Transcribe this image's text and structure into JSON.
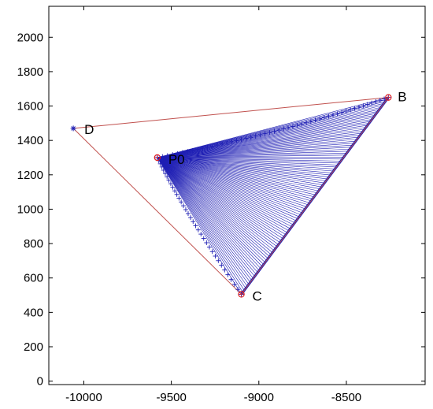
{
  "chart_data": {
    "type": "scatter",
    "title": "",
    "xlabel": "",
    "ylabel": "",
    "xlim": [
      -10200,
      -8050
    ],
    "ylim": [
      -20,
      2180
    ],
    "grid": false,
    "x_ticks": [
      -10000,
      -9500,
      -9000,
      -8500
    ],
    "x_tick_labels": [
      "-10000",
      "-9500",
      "-9000",
      "-8500"
    ],
    "y_ticks": [
      0,
      200,
      400,
      600,
      800,
      1000,
      1200,
      1400,
      1600,
      1800,
      2000
    ],
    "y_tick_labels": [
      "0",
      "200",
      "400",
      "600",
      "800",
      "1000",
      "1200",
      "1400",
      "1600",
      "1800",
      "2000"
    ],
    "colors": {
      "outline": "#c0504d",
      "fan": "#1f1fb4",
      "axes": "#000000"
    },
    "key_points": [
      {
        "label": "B",
        "x": -8260,
        "y": 1650,
        "marker": "circle"
      },
      {
        "label": "C",
        "x": -9100,
        "y": 505,
        "marker": "circle"
      },
      {
        "label": "D",
        "x": -10060,
        "y": 1470,
        "marker": "star"
      },
      {
        "label": "P0",
        "x": -9580,
        "y": 1300,
        "marker": "circle"
      }
    ],
    "outline": [
      "D",
      "B",
      "C",
      "D"
    ],
    "fan": {
      "origin": "P0",
      "edge_from": "B",
      "edge_to": "C",
      "line_count": 100,
      "upper_curve": {
        "start": "P0",
        "end": "B",
        "control": {
          "x": -8850,
          "y": 1445
        },
        "markers": 50
      },
      "lower_curve": {
        "start": "P0",
        "end": "C",
        "control": {
          "x": -9440,
          "y": 1000
        },
        "markers": 34
      }
    }
  }
}
